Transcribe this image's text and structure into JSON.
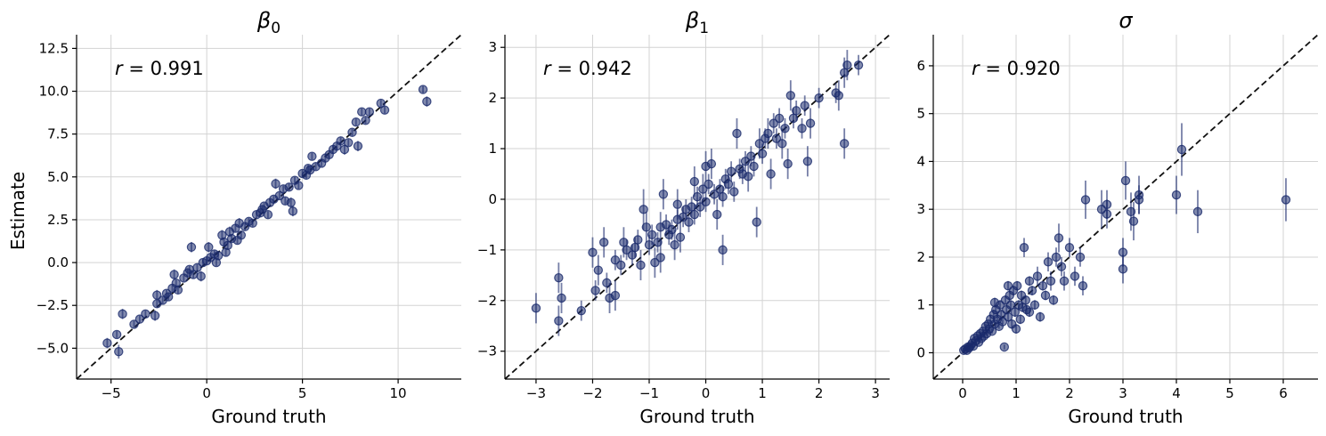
{
  "figure": {
    "ylabel": "Estimate",
    "xlabel": "Ground truth"
  },
  "colors": {
    "points": "#1a2a6c",
    "identity_line": "#111111",
    "grid": "#d3d3d3"
  },
  "chart_data": [
    {
      "type": "scatter",
      "title": "β0",
      "title_base": "β",
      "title_sub": "0",
      "annotation_var": "r",
      "annotation_value": " = 0.991",
      "xlabel": "Ground truth",
      "ylabel": "Estimate",
      "xlim": [
        -6.8,
        13.3
      ],
      "ylim": [
        -6.8,
        13.3
      ],
      "xticks": [
        -5,
        0,
        5,
        10
      ],
      "xtick_labels": [
        "−5",
        "0",
        "5",
        "10"
      ],
      "yticks": [
        -5.0,
        -2.5,
        0.0,
        2.5,
        5.0,
        7.5,
        10.0,
        12.5
      ],
      "ytick_labels": [
        "−5.0",
        "−2.5",
        "0.0",
        "2.5",
        "5.0",
        "7.5",
        "10.0",
        "12.5"
      ],
      "grid": true,
      "identity_line": true,
      "points": [
        [
          -5.2,
          -4.7,
          0.3
        ],
        [
          -4.7,
          -4.2,
          0.2
        ],
        [
          -4.6,
          -5.2,
          0.4
        ],
        [
          -4.4,
          -3.0,
          0.3
        ],
        [
          -3.8,
          -3.6,
          0.2
        ],
        [
          -3.5,
          -3.3,
          0.2
        ],
        [
          -3.2,
          -3.0,
          0.2
        ],
        [
          -2.7,
          -3.1,
          0.3
        ],
        [
          -2.6,
          -2.4,
          0.2
        ],
        [
          -2.6,
          -1.9,
          0.3
        ],
        [
          -2.3,
          -2.2,
          0.2
        ],
        [
          -2.1,
          -1.8,
          0.2
        ],
        [
          -1.8,
          -1.5,
          0.2
        ],
        [
          -1.7,
          -0.7,
          0.3
        ],
        [
          -1.6,
          -1.2,
          0.2
        ],
        [
          -1.5,
          -1.6,
          0.2
        ],
        [
          -1.2,
          -0.9,
          0.2
        ],
        [
          -1.0,
          -0.6,
          0.2
        ],
        [
          -0.8,
          0.9,
          0.3
        ],
        [
          -0.7,
          -0.7,
          0.2
        ],
        [
          -0.5,
          -0.3,
          0.2
        ],
        [
          -0.3,
          -0.8,
          0.3
        ],
        [
          -0.2,
          0.0,
          0.2
        ],
        [
          0.0,
          0.1,
          0.2
        ],
        [
          0.1,
          0.9,
          0.3
        ],
        [
          0.2,
          0.3,
          0.2
        ],
        [
          0.4,
          0.5,
          0.2
        ],
        [
          0.6,
          0.4,
          0.2
        ],
        [
          0.8,
          1.6,
          0.3
        ],
        [
          0.9,
          1.2,
          0.2
        ],
        [
          1.0,
          0.6,
          0.2
        ],
        [
          1.1,
          1.0,
          0.2
        ],
        [
          1.2,
          1.8,
          0.3
        ],
        [
          1.3,
          1.4,
          0.2
        ],
        [
          1.5,
          2.0,
          0.2
        ],
        [
          1.7,
          2.3,
          0.3
        ],
        [
          1.8,
          1.6,
          0.2
        ],
        [
          2.0,
          2.1,
          0.2
        ],
        [
          2.2,
          2.4,
          0.2
        ],
        [
          2.4,
          2.3,
          0.2
        ],
        [
          2.6,
          2.8,
          0.2
        ],
        [
          2.8,
          2.9,
          0.2
        ],
        [
          3.0,
          3.3,
          0.2
        ],
        [
          3.2,
          2.8,
          0.2
        ],
        [
          3.3,
          3.5,
          0.2
        ],
        [
          3.5,
          3.7,
          0.2
        ],
        [
          3.6,
          4.6,
          0.3
        ],
        [
          3.8,
          3.9,
          0.2
        ],
        [
          4.0,
          4.3,
          0.2
        ],
        [
          4.1,
          3.6,
          0.2
        ],
        [
          4.3,
          4.4,
          0.2
        ],
        [
          4.4,
          3.5,
          0.3
        ],
        [
          4.5,
          3.0,
          0.3
        ],
        [
          4.6,
          4.8,
          0.2
        ],
        [
          4.8,
          4.5,
          0.2
        ],
        [
          5.0,
          5.2,
          0.2
        ],
        [
          5.2,
          5.1,
          0.2
        ],
        [
          5.4,
          5.4,
          0.2
        ],
        [
          5.5,
          6.2,
          0.2
        ],
        [
          5.7,
          5.6,
          0.2
        ],
        [
          6.0,
          5.8,
          0.2
        ],
        [
          6.2,
          6.1,
          0.2
        ],
        [
          6.4,
          6.3,
          0.2
        ],
        [
          6.6,
          6.6,
          0.2
        ],
        [
          6.8,
          6.8,
          0.2
        ],
        [
          7.0,
          7.1,
          0.2
        ],
        [
          7.2,
          6.6,
          0.3
        ],
        [
          7.4,
          7.0,
          0.2
        ],
        [
          7.6,
          7.6,
          0.2
        ],
        [
          7.8,
          8.2,
          0.2
        ],
        [
          7.9,
          6.8,
          0.3
        ],
        [
          8.1,
          8.8,
          0.2
        ],
        [
          8.3,
          8.3,
          0.2
        ],
        [
          8.5,
          8.8,
          0.2
        ],
        [
          9.1,
          9.3,
          0.2
        ],
        [
          9.3,
          8.9,
          0.2
        ],
        [
          11.3,
          10.1,
          0.2
        ],
        [
          11.5,
          9.4,
          0.3
        ],
        [
          -2.0,
          -2.0,
          0.2
        ],
        [
          0.5,
          0.0,
          0.2
        ],
        [
          1.6,
          1.3,
          0.2
        ],
        [
          2.9,
          3.1,
          0.2
        ],
        [
          5.3,
          5.5,
          0.2
        ],
        [
          -0.9,
          -0.4,
          0.2
        ]
      ]
    },
    {
      "type": "scatter",
      "title": "β1",
      "title_base": "β",
      "title_sub": "1",
      "annotation_var": "r",
      "annotation_value": " = 0.942",
      "xlabel": "Ground truth",
      "ylabel": "",
      "xlim": [
        -3.55,
        3.25
      ],
      "ylim": [
        -3.55,
        3.25
      ],
      "xticks": [
        -3,
        -2,
        -1,
        0,
        1,
        2,
        3
      ],
      "xtick_labels": [
        "−3",
        "−2",
        "−1",
        "0",
        "1",
        "2",
        "3"
      ],
      "yticks": [
        -3,
        -2,
        -1,
        0,
        1,
        2,
        3
      ],
      "ytick_labels": [
        "−3",
        "−2",
        "−1",
        "0",
        "1",
        "2",
        "3"
      ],
      "grid": true,
      "identity_line": true,
      "points": [
        [
          -3.0,
          -2.15,
          0.3
        ],
        [
          -2.6,
          -2.4,
          0.3
        ],
        [
          -2.55,
          -1.95,
          0.3
        ],
        [
          -2.6,
          -1.55,
          0.3
        ],
        [
          -2.2,
          -2.2,
          0.2
        ],
        [
          -2.0,
          -1.05,
          0.3
        ],
        [
          -1.95,
          -1.8,
          0.2
        ],
        [
          -1.9,
          -1.4,
          0.3
        ],
        [
          -1.8,
          -0.85,
          0.3
        ],
        [
          -1.75,
          -1.65,
          0.2
        ],
        [
          -1.7,
          -1.95,
          0.3
        ],
        [
          -1.6,
          -1.9,
          0.3
        ],
        [
          -1.6,
          -1.2,
          0.2
        ],
        [
          -1.5,
          -1.3,
          0.2
        ],
        [
          -1.45,
          -0.85,
          0.3
        ],
        [
          -1.4,
          -1.0,
          0.2
        ],
        [
          -1.3,
          -1.1,
          0.2
        ],
        [
          -1.25,
          -0.95,
          0.2
        ],
        [
          -1.2,
          -0.8,
          0.2
        ],
        [
          -1.15,
          -1.3,
          0.3
        ],
        [
          -1.1,
          -0.2,
          0.4
        ],
        [
          -1.05,
          -0.55,
          0.3
        ],
        [
          -1.0,
          -0.9,
          0.2
        ],
        [
          -0.95,
          -0.7,
          0.2
        ],
        [
          -0.9,
          -1.25,
          0.3
        ],
        [
          -0.85,
          -0.85,
          0.2
        ],
        [
          -0.8,
          -0.55,
          0.3
        ],
        [
          -0.8,
          -1.15,
          0.3
        ],
        [
          -0.75,
          0.1,
          0.3
        ],
        [
          -0.7,
          -0.5,
          0.2
        ],
        [
          -0.65,
          -0.7,
          0.2
        ],
        [
          -0.6,
          -0.6,
          0.2
        ],
        [
          -0.55,
          -0.9,
          0.3
        ],
        [
          -0.5,
          -0.4,
          0.2
        ],
        [
          -0.5,
          -0.1,
          0.3
        ],
        [
          -0.45,
          -0.75,
          0.3
        ],
        [
          -0.4,
          -0.35,
          0.2
        ],
        [
          -0.35,
          -0.2,
          0.2
        ],
        [
          -0.3,
          -0.45,
          0.2
        ],
        [
          -0.25,
          -0.15,
          0.2
        ],
        [
          -0.2,
          -0.3,
          0.2
        ],
        [
          -0.15,
          0.05,
          0.2
        ],
        [
          -0.1,
          -0.15,
          0.2
        ],
        [
          -0.05,
          0.2,
          0.3
        ],
        [
          0.0,
          -0.05,
          0.2
        ],
        [
          0.05,
          0.3,
          0.2
        ],
        [
          0.1,
          0.7,
          0.3
        ],
        [
          0.15,
          0.1,
          0.2
        ],
        [
          0.2,
          -0.3,
          0.3
        ],
        [
          0.25,
          0.2,
          0.2
        ],
        [
          0.3,
          -1.0,
          0.3
        ],
        [
          0.35,
          0.4,
          0.2
        ],
        [
          0.4,
          0.3,
          0.2
        ],
        [
          0.45,
          0.55,
          0.2
        ],
        [
          0.5,
          0.15,
          0.2
        ],
        [
          0.55,
          1.3,
          0.3
        ],
        [
          0.6,
          0.6,
          0.2
        ],
        [
          0.65,
          0.5,
          0.2
        ],
        [
          0.7,
          0.75,
          0.2
        ],
        [
          0.75,
          0.45,
          0.3
        ],
        [
          0.8,
          0.85,
          0.2
        ],
        [
          0.85,
          0.65,
          0.2
        ],
        [
          0.9,
          -0.45,
          0.3
        ],
        [
          0.95,
          1.1,
          0.3
        ],
        [
          1.0,
          0.9,
          0.2
        ],
        [
          1.05,
          1.2,
          0.2
        ],
        [
          1.1,
          1.3,
          0.3
        ],
        [
          1.15,
          0.5,
          0.3
        ],
        [
          1.2,
          1.5,
          0.2
        ],
        [
          1.25,
          1.2,
          0.2
        ],
        [
          1.3,
          1.6,
          0.2
        ],
        [
          1.35,
          1.1,
          0.3
        ],
        [
          1.4,
          1.4,
          0.2
        ],
        [
          1.45,
          0.7,
          0.3
        ],
        [
          1.5,
          2.05,
          0.3
        ],
        [
          1.55,
          1.6,
          0.2
        ],
        [
          1.6,
          1.75,
          0.2
        ],
        [
          1.7,
          1.4,
          0.2
        ],
        [
          1.75,
          1.85,
          0.2
        ],
        [
          1.8,
          0.75,
          0.3
        ],
        [
          1.85,
          1.5,
          0.3
        ],
        [
          2.0,
          2.0,
          0.2
        ],
        [
          2.3,
          2.1,
          0.2
        ],
        [
          2.35,
          2.05,
          0.3
        ],
        [
          2.45,
          1.1,
          0.3
        ],
        [
          2.45,
          2.5,
          0.3
        ],
        [
          2.5,
          2.65,
          0.3
        ],
        [
          2.7,
          2.65,
          0.2
        ],
        [
          -0.2,
          0.35,
          0.3
        ],
        [
          0.0,
          0.65,
          0.3
        ],
        [
          0.3,
          0.05,
          0.2
        ]
      ]
    },
    {
      "type": "scatter",
      "title": "σ",
      "title_base": "σ",
      "title_sub": "",
      "annotation_var": "r",
      "annotation_value": " = 0.920",
      "xlabel": "Ground truth",
      "ylabel": "",
      "xlim": [
        -0.55,
        6.65
      ],
      "ylim": [
        -0.55,
        6.65
      ],
      "xticks": [
        0,
        1,
        2,
        3,
        4,
        5,
        6
      ],
      "xtick_labels": [
        "0",
        "1",
        "2",
        "3",
        "4",
        "5",
        "6"
      ],
      "yticks": [
        0,
        1,
        2,
        3,
        4,
        5,
        6
      ],
      "ytick_labels": [
        "0",
        "1",
        "2",
        "3",
        "4",
        "5",
        "6"
      ],
      "grid": true,
      "identity_line": true,
      "points": [
        [
          0.02,
          0.05,
          0.05
        ],
        [
          0.05,
          0.08,
          0.05
        ],
        [
          0.08,
          0.05,
          0.05
        ],
        [
          0.1,
          0.12,
          0.05
        ],
        [
          0.12,
          0.1,
          0.05
        ],
        [
          0.15,
          0.15,
          0.05
        ],
        [
          0.18,
          0.2,
          0.05
        ],
        [
          0.2,
          0.14,
          0.05
        ],
        [
          0.22,
          0.3,
          0.05
        ],
        [
          0.25,
          0.25,
          0.05
        ],
        [
          0.28,
          0.35,
          0.05
        ],
        [
          0.3,
          0.22,
          0.05
        ],
        [
          0.33,
          0.4,
          0.05
        ],
        [
          0.35,
          0.3,
          0.05
        ],
        [
          0.38,
          0.45,
          0.05
        ],
        [
          0.4,
          0.35,
          0.05
        ],
        [
          0.43,
          0.55,
          0.05
        ],
        [
          0.45,
          0.4,
          0.05
        ],
        [
          0.48,
          0.6,
          0.05
        ],
        [
          0.5,
          0.5,
          0.05
        ],
        [
          0.52,
          0.7,
          0.1
        ],
        [
          0.55,
          0.45,
          0.05
        ],
        [
          0.58,
          0.8,
          0.1
        ],
        [
          0.6,
          0.6,
          0.05
        ],
        [
          0.62,
          0.9,
          0.1
        ],
        [
          0.65,
          0.7,
          0.05
        ],
        [
          0.68,
          0.55,
          0.05
        ],
        [
          0.7,
          1.0,
          0.1
        ],
        [
          0.72,
          0.8,
          0.1
        ],
        [
          0.75,
          0.65,
          0.05
        ],
        [
          0.78,
          0.12,
          0.05
        ],
        [
          0.8,
          1.1,
          0.1
        ],
        [
          0.82,
          0.9,
          0.1
        ],
        [
          0.85,
          0.75,
          0.1
        ],
        [
          0.88,
          1.2,
          0.1
        ],
        [
          0.9,
          1.0,
          0.1
        ],
        [
          0.92,
          0.6,
          0.1
        ],
        [
          0.95,
          1.3,
          0.1
        ],
        [
          0.98,
          0.85,
          0.1
        ],
        [
          1.0,
          0.5,
          0.1
        ],
        [
          1.02,
          1.4,
          0.1
        ],
        [
          1.05,
          1.0,
          0.1
        ],
        [
          1.08,
          0.7,
          0.1
        ],
        [
          1.1,
          1.2,
          0.1
        ],
        [
          1.12,
          0.95,
          0.1
        ],
        [
          1.15,
          2.2,
          0.2
        ],
        [
          1.18,
          1.1,
          0.1
        ],
        [
          1.2,
          0.9,
          0.1
        ],
        [
          1.25,
          1.5,
          0.1
        ],
        [
          1.3,
          1.3,
          0.1
        ],
        [
          1.35,
          1.0,
          0.1
        ],
        [
          1.4,
          1.6,
          0.2
        ],
        [
          1.45,
          0.75,
          0.1
        ],
        [
          1.5,
          1.4,
          0.1
        ],
        [
          1.55,
          1.2,
          0.1
        ],
        [
          1.6,
          1.9,
          0.2
        ],
        [
          1.65,
          1.5,
          0.2
        ],
        [
          1.7,
          1.1,
          0.1
        ],
        [
          1.75,
          2.0,
          0.2
        ],
        [
          1.8,
          2.4,
          0.3
        ],
        [
          1.85,
          1.8,
          0.2
        ],
        [
          1.9,
          1.5,
          0.2
        ],
        [
          2.0,
          2.2,
          0.2
        ],
        [
          2.1,
          1.6,
          0.2
        ],
        [
          2.2,
          2.0,
          0.2
        ],
        [
          2.25,
          1.4,
          0.2
        ],
        [
          2.3,
          3.2,
          0.4
        ],
        [
          2.6,
          3.0,
          0.4
        ],
        [
          2.7,
          2.9,
          0.3
        ],
        [
          2.7,
          3.1,
          0.3
        ],
        [
          3.0,
          1.75,
          0.3
        ],
        [
          3.0,
          2.1,
          0.3
        ],
        [
          3.05,
          3.6,
          0.4
        ],
        [
          3.15,
          2.95,
          0.4
        ],
        [
          3.2,
          2.75,
          0.4
        ],
        [
          3.3,
          3.3,
          0.4
        ],
        [
          3.3,
          3.2,
          0.3
        ],
        [
          4.0,
          3.3,
          0.4
        ],
        [
          4.1,
          4.25,
          0.55
        ],
        [
          4.4,
          2.95,
          0.45
        ],
        [
          6.05,
          3.2,
          0.45
        ],
        [
          0.6,
          1.05,
          0.1
        ],
        [
          0.85,
          1.4,
          0.1
        ],
        [
          1.25,
          0.85,
          0.1
        ]
      ]
    }
  ]
}
